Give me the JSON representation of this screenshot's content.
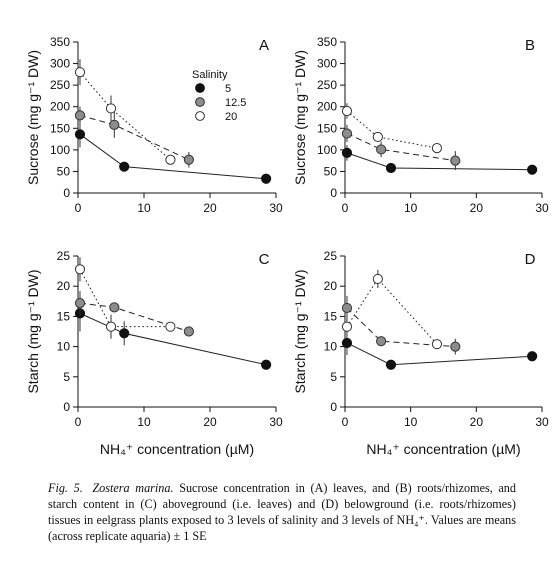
{
  "chart_data": [
    {
      "type": "scatter",
      "panel_label": "A",
      "ylabel": "Sucrose (mg g⁻¹ DW)",
      "xlabel": "",
      "xlim": [
        0,
        30
      ],
      "ylim": [
        0,
        350
      ],
      "xticks": [
        0,
        10,
        20,
        30
      ],
      "yticks": [
        0,
        50,
        100,
        150,
        200,
        250,
        300,
        350
      ],
      "legend": {
        "title": "Salinity",
        "placement": "top-right",
        "entries": [
          "5",
          "12.5",
          "20"
        ]
      },
      "series": [
        {
          "name": "5",
          "marker": "filled-black",
          "line": "solid",
          "points": [
            {
              "x": 0.3,
              "y": 136,
              "err": 30
            },
            {
              "x": 7,
              "y": 61,
              "err": 0
            },
            {
              "x": 28.5,
              "y": 33,
              "err": 8
            }
          ]
        },
        {
          "name": "12.5",
          "marker": "filled-gray",
          "line": "dashed",
          "points": [
            {
              "x": 0.3,
              "y": 180,
              "err": 20
            },
            {
              "x": 5.5,
              "y": 158,
              "err": 30
            },
            {
              "x": 16.8,
              "y": 77,
              "err": 18
            }
          ]
        },
        {
          "name": "20",
          "marker": "open",
          "line": "dotted",
          "points": [
            {
              "x": 0.3,
              "y": 280,
              "err": 30
            },
            {
              "x": 5,
              "y": 196,
              "err": 30
            },
            {
              "x": 14,
              "y": 77,
              "err": 0
            }
          ]
        }
      ]
    },
    {
      "type": "scatter",
      "panel_label": "B",
      "ylabel": "Sucrose (mg g⁻¹ DW)",
      "xlabel": "",
      "xlim": [
        0,
        30
      ],
      "ylim": [
        0,
        350
      ],
      "xticks": [
        0,
        10,
        20,
        30
      ],
      "yticks": [
        0,
        50,
        100,
        150,
        200,
        250,
        300,
        350
      ],
      "series": [
        {
          "name": "5",
          "marker": "filled-black",
          "line": "solid",
          "points": [
            {
              "x": 0.3,
              "y": 93,
              "err": 18
            },
            {
              "x": 7,
              "y": 58,
              "err": 0
            },
            {
              "x": 28.5,
              "y": 54,
              "err": 0
            }
          ]
        },
        {
          "name": "12.5",
          "marker": "filled-gray",
          "line": "dashed",
          "points": [
            {
              "x": 0.3,
              "y": 138,
              "err": 20
            },
            {
              "x": 5.5,
              "y": 101,
              "err": 18
            },
            {
              "x": 16.8,
              "y": 75,
              "err": 22
            }
          ]
        },
        {
          "name": "20",
          "marker": "open",
          "line": "dotted",
          "points": [
            {
              "x": 0.3,
              "y": 190,
              "err": 18
            },
            {
              "x": 5,
              "y": 130,
              "err": 0
            },
            {
              "x": 14,
              "y": 104,
              "err": 0
            }
          ]
        }
      ]
    },
    {
      "type": "scatter",
      "panel_label": "C",
      "ylabel": "Starch (mg g⁻¹ DW)",
      "xlabel": "NH₄⁺ concentration (µM)",
      "xlim": [
        0,
        30
      ],
      "ylim": [
        0,
        25
      ],
      "xticks": [
        0,
        10,
        20,
        30
      ],
      "yticks": [
        0,
        5,
        10,
        15,
        20,
        25
      ],
      "series": [
        {
          "name": "5",
          "marker": "filled-black",
          "line": "solid",
          "points": [
            {
              "x": 0.3,
              "y": 15.5,
              "err": 3
            },
            {
              "x": 7,
              "y": 12.2,
              "err": 2
            },
            {
              "x": 28.5,
              "y": 7,
              "err": 0
            }
          ]
        },
        {
          "name": "12.5",
          "marker": "filled-gray",
          "line": "dashed",
          "points": [
            {
              "x": 0.3,
              "y": 17.2,
              "err": 2
            },
            {
              "x": 5.5,
              "y": 16.5,
              "err": 0
            },
            {
              "x": 16.8,
              "y": 12.5,
              "err": 0
            }
          ]
        },
        {
          "name": "20",
          "marker": "open",
          "line": "dotted",
          "points": [
            {
              "x": 0.3,
              "y": 22.8,
              "err": 2
            },
            {
              "x": 5,
              "y": 13.3,
              "err": 2
            },
            {
              "x": 14,
              "y": 13.3,
              "err": 0
            }
          ]
        }
      ]
    },
    {
      "type": "scatter",
      "panel_label": "D",
      "ylabel": "Starch (mg g⁻¹ DW)",
      "xlabel": "NH₄⁺ concentration (µM)",
      "xlim": [
        0,
        30
      ],
      "ylim": [
        0,
        25
      ],
      "xticks": [
        0,
        10,
        20,
        30
      ],
      "yticks": [
        0,
        5,
        10,
        15,
        20,
        25
      ],
      "series": [
        {
          "name": "5",
          "marker": "filled-black",
          "line": "solid",
          "points": [
            {
              "x": 0.3,
              "y": 10.6,
              "err": 2
            },
            {
              "x": 7,
              "y": 7,
              "err": 0
            },
            {
              "x": 28.5,
              "y": 8.4,
              "err": 0
            }
          ]
        },
        {
          "name": "12.5",
          "marker": "filled-gray",
          "line": "dashed",
          "points": [
            {
              "x": 0.3,
              "y": 16.4,
              "err": 2
            },
            {
              "x": 5.5,
              "y": 10.9,
              "err": 0
            },
            {
              "x": 16.8,
              "y": 10,
              "err": 1.3
            }
          ]
        },
        {
          "name": "20",
          "marker": "open",
          "line": "dotted",
          "points": [
            {
              "x": 0.3,
              "y": 13.3,
              "err": 1.5
            },
            {
              "x": 5,
              "y": 21.2,
              "err": 1.5
            },
            {
              "x": 14,
              "y": 10.4,
              "err": 0
            }
          ]
        }
      ]
    }
  ],
  "caption": {
    "lead": "Fig. 5.",
    "species": "Zostera marina.",
    "text": "Sucrose concentration in (A) leaves, and (B) roots/rhizomes, and starch content in (C) aboveground (i.e. leaves) and (D) belowground (i.e. roots/rhizomes) tissues in eelgrass plants exposed to 3 levels of salinity and 3 levels of NH₄⁺. Values are means (across replicate aquaria) ± 1 SE"
  }
}
